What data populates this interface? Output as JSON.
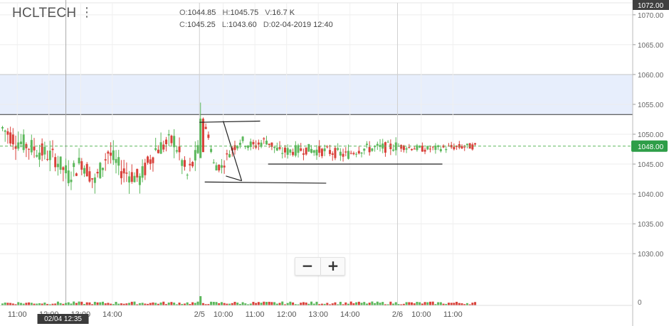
{
  "symbol": "HCLTECH",
  "menu_icon": "⋮",
  "ohlc": {
    "o_label": "O:",
    "o": "1044.85",
    "h_label": "H:",
    "h": "1045.75",
    "v_label": "V:",
    "v": "16.7 K",
    "c_label": "C:",
    "c": "1045.25",
    "l_label": "L:",
    "l": "1043.60",
    "d_label": "D:",
    "d": "02-04-2019 12:40"
  },
  "zoom": {
    "minus": "−",
    "plus": "+"
  },
  "colors": {
    "up": "#5cb85c",
    "down": "#d9413a",
    "zone_fill": "#e7eefc",
    "last_price_bg": "#2e9e48",
    "top_price_bg": "#3f3f3f",
    "cursor_label_bg": "#3a3a3a"
  },
  "chart_data": {
    "type": "candlestick",
    "y_axis": {
      "min": 1023,
      "max": 1072,
      "ticks": [
        "1070.00",
        "1065.00",
        "1060.00",
        "1055.00",
        "1050.00",
        "1045.00",
        "1040.00",
        "1035.00",
        "1030.00"
      ],
      "tick_values": [
        1070,
        1065,
        1060,
        1055,
        1050,
        1045,
        1040,
        1035,
        1030
      ]
    },
    "volume_zero_label": "0",
    "x_axis": {
      "labels": [
        "11:00",
        "12:00",
        "13:00",
        "14:00",
        "2/5",
        "10:00",
        "11:00",
        "12:00",
        "13:00",
        "14:00",
        "2/6",
        "10:00",
        "11:00"
      ],
      "bars_per_day": 75,
      "bars_per_hour": 12,
      "first_label_bar": 6,
      "total_bars": 256
    },
    "top_price_label": "1072.00",
    "last_price": 1048.0,
    "last_price_label": "1048.00",
    "crosshair_time_label": "02/04 12:35",
    "crosshair_bar": 24,
    "resistance_zone": [
      1053.3,
      1060.0
    ],
    "grid": true,
    "drawings": [
      {
        "type": "trendline",
        "points": [
          [
            75,
            1052.0
          ],
          [
            98,
            1052.2
          ]
        ]
      },
      {
        "type": "trendline",
        "points": [
          [
            84,
            1052.2
          ],
          [
            91,
            1042.2
          ]
        ]
      },
      {
        "type": "trendline",
        "points": [
          [
            85,
            1043.0
          ],
          [
            91,
            1042.2
          ]
        ]
      },
      {
        "type": "trendline",
        "points": [
          [
            77,
            1042.0
          ],
          [
            123,
            1041.8
          ]
        ]
      },
      {
        "type": "trendline",
        "points": [
          [
            101,
            1045.0
          ],
          [
            167,
            1045.0
          ]
        ]
      }
    ],
    "segments": [
      {
        "bars": 75,
        "pts": [
          [
            0,
            1051
          ],
          [
            5,
            1049
          ],
          [
            10,
            1048
          ],
          [
            20,
            1046
          ],
          [
            25,
            1043
          ],
          [
            30,
            1045.5
          ],
          [
            35,
            1042
          ],
          [
            40,
            1047
          ],
          [
            45,
            1044
          ],
          [
            52,
            1042.5
          ],
          [
            58,
            1047.5
          ],
          [
            65,
            1049
          ],
          [
            70,
            1043
          ],
          [
            74,
            1047
          ]
        ]
      },
      {
        "bars": 75,
        "pts": [
          [
            0,
            1052
          ],
          [
            3,
            1050
          ],
          [
            5,
            1045
          ],
          [
            8,
            1044.5
          ],
          [
            11,
            1047
          ],
          [
            15,
            1049
          ],
          [
            20,
            1048
          ],
          [
            25,
            1049
          ],
          [
            30,
            1047
          ],
          [
            40,
            1047.5
          ],
          [
            50,
            1047
          ],
          [
            55,
            1046.5
          ],
          [
            60,
            1047.5
          ],
          [
            70,
            1047.8
          ],
          [
            74,
            1048
          ]
        ]
      },
      {
        "bars": 30,
        "pts": [
          [
            0,
            1048
          ],
          [
            10,
            1047.5
          ],
          [
            20,
            1047.8
          ],
          [
            29,
            1048
          ]
        ]
      }
    ],
    "seed": 7
  }
}
